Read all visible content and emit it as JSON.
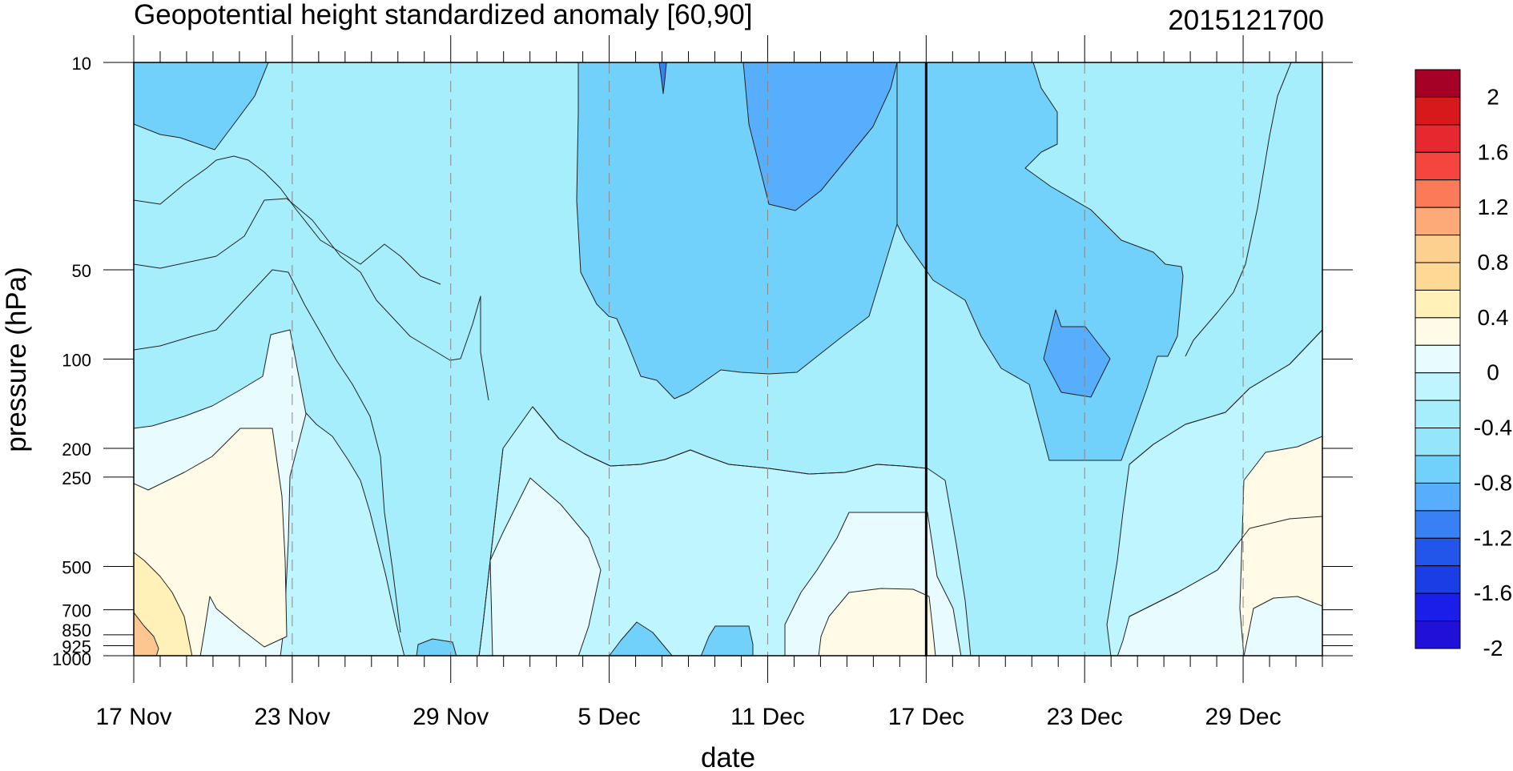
{
  "chart_data": {
    "type": "heatmap",
    "subtype": "filled-contour",
    "title": "Geopotential height standardized anomaly [60,90]",
    "date_stamp": "2015121700",
    "xlabel": "date",
    "ylabel": "pressure (hPa)",
    "x_range": [
      "2015-11-17",
      "2016-01-01"
    ],
    "x_ticks": [
      {
        "date": "2015-11-17",
        "label": "17 Nov"
      },
      {
        "date": "2015-11-23",
        "label": "23 Nov"
      },
      {
        "date": "2015-11-29",
        "label": "29 Nov"
      },
      {
        "date": "2015-12-05",
        "label": "5 Dec"
      },
      {
        "date": "2015-12-11",
        "label": "11 Dec"
      },
      {
        "date": "2015-12-17",
        "label": "17 Dec"
      },
      {
        "date": "2015-12-23",
        "label": "23 Dec"
      },
      {
        "date": "2015-12-29",
        "label": "29 Dec"
      }
    ],
    "y_scale": "log",
    "y_reversed": true,
    "y_range_hpa": [
      1000,
      10
    ],
    "y_ticks": [
      {
        "value": 10,
        "label": "10"
      },
      {
        "value": 50,
        "label": "50"
      },
      {
        "value": 100,
        "label": "100"
      },
      {
        "value": 200,
        "label": "200"
      },
      {
        "value": 250,
        "label": "250"
      },
      {
        "value": 500,
        "label": "500"
      },
      {
        "value": 700,
        "label": "700"
      },
      {
        "value": 850,
        "label": "850"
      },
      {
        "value": 925,
        "label": "925"
      },
      {
        "value": 1000,
        "label": "1000"
      }
    ],
    "current_date_line": "2015-12-17",
    "gridlines": "dashed vertical at labeled dates",
    "colorbar": {
      "placement": "right",
      "labels": [
        "2",
        "1.6",
        "1.2",
        "0.8",
        "0.4",
        "0",
        "-0.4",
        "-0.8",
        "-1.2",
        "-1.6",
        "-2"
      ],
      "colors_top_to_bottom": [
        "#a50026",
        "#d7191c",
        "#e8282f",
        "#f4463e",
        "#fb7a58",
        "#fcab78",
        "#fdd08f",
        "#fed995",
        "#fff1b8",
        "#fffbe6",
        "#e8fcff",
        "#bef5fe",
        "#a6eefc",
        "#96e6fb",
        "#71d1fb",
        "#57aefc",
        "#3a80f5",
        "#2255ea",
        "#1a3ee6",
        "#1a1ee8",
        "#2010d8"
      ]
    },
    "approx_fields": [
      {
        "region": "17-22 Nov, 250-1000 hPa",
        "anomaly": "0 to 0.8"
      },
      {
        "region": "17-21 Nov, 10-30 hPa",
        "anomaly": "-0.8"
      },
      {
        "region": "6-14 Dec, 10-100 hPa",
        "anomaly": "-0.8 to -1.2"
      },
      {
        "region": "10-15 Dec, 10-30 hPa",
        "anomaly": "-1.2"
      },
      {
        "region": "21-23 Dec, 70-120 hPa",
        "anomaly": "-1.2"
      },
      {
        "region": "13-17 Dec, 600-1000 hPa",
        "anomaly": "0 to 0.4"
      },
      {
        "region": "29 Dec-1 Jan, 200-700 hPa",
        "anomaly": "0 to 0.4"
      }
    ]
  }
}
